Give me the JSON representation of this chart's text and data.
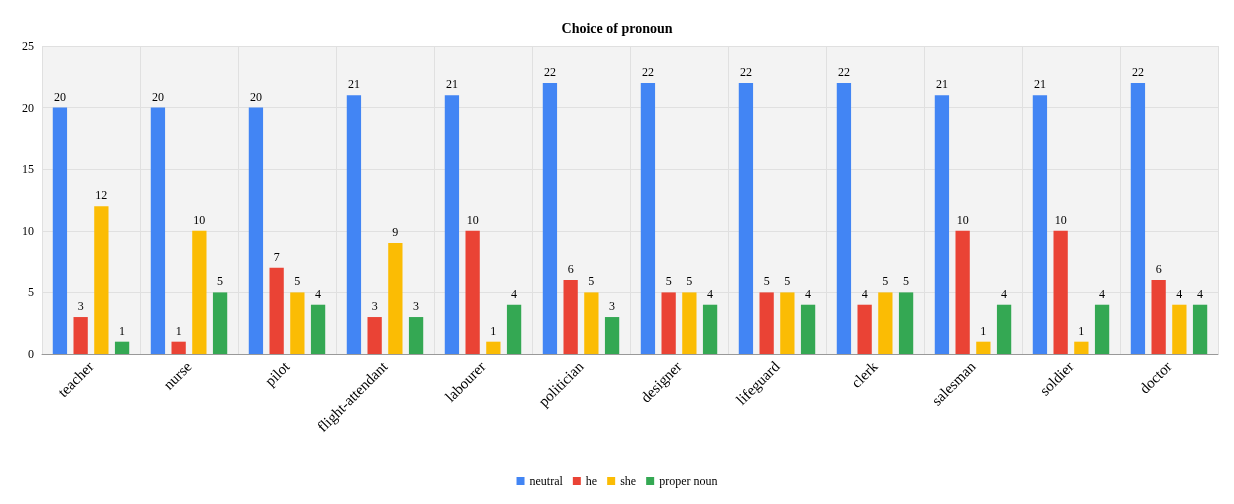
{
  "chart_data": {
    "type": "bar",
    "title": "Choice of pronoun",
    "categories": [
      "teacher",
      "nurse",
      "pilot",
      "flight-attendant",
      "labourer",
      "politician",
      "designer",
      "lifeguard",
      "clerk",
      "salesman",
      "soldier",
      "doctor"
    ],
    "series": [
      {
        "name": "neutral",
        "color": "#4285f4",
        "values": [
          20,
          20,
          20,
          21,
          21,
          22,
          22,
          22,
          22,
          21,
          21,
          22
        ]
      },
      {
        "name": "he",
        "color": "#ea4335",
        "values": [
          3,
          1,
          7,
          3,
          10,
          6,
          5,
          5,
          4,
          10,
          10,
          6
        ]
      },
      {
        "name": "she",
        "color": "#fbbc04",
        "values": [
          12,
          10,
          5,
          9,
          1,
          5,
          5,
          5,
          5,
          1,
          1,
          4
        ]
      },
      {
        "name": "proper noun",
        "color": "#34a853",
        "values": [
          1,
          5,
          4,
          3,
          4,
          3,
          4,
          4,
          5,
          4,
          4,
          4
        ]
      }
    ],
    "ylim": [
      0,
      25
    ],
    "yticks": [
      0,
      5,
      10,
      15,
      20,
      25
    ],
    "grid": true,
    "legend": "bottom",
    "data_labels": true
  }
}
